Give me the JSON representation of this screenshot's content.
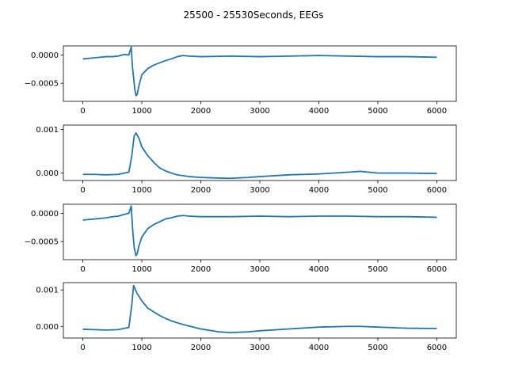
{
  "figure_title": "25500 - 25530Seconds, EEGs",
  "line_color": "#1f77b4",
  "chart_data": [
    {
      "type": "line",
      "title": "",
      "xlabel": "",
      "ylabel": "",
      "xlim": [
        -330,
        6330
      ],
      "ylim": [
        -0.00082,
        0.00016
      ],
      "xticks": [
        0,
        1000,
        2000,
        3000,
        4000,
        5000,
        6000
      ],
      "xtick_labels": [
        "0",
        "1000",
        "2000",
        "3000",
        "4000",
        "5000",
        "6000"
      ],
      "yticks": [
        -0.0005,
        0.0
      ],
      "ytick_labels": [
        "−0.0005",
        "0.0000"
      ],
      "grid": false,
      "series": [
        {
          "x": [
            0,
            100,
            200,
            300,
            400,
            500,
            600,
            700,
            780,
            820,
            840,
            860,
            880,
            900,
            920,
            950,
            1000,
            1100,
            1200,
            1300,
            1400,
            1500,
            1600,
            1700,
            1800,
            2000,
            2500,
            3000,
            3500,
            4000,
            4500,
            5000,
            5500,
            6000
          ],
          "y": [
            -7e-05,
            -6e-05,
            -5e-05,
            -4e-05,
            -3e-05,
            -3e-05,
            -2e-05,
            1e-05,
            0.0,
            0.00014,
            -0.0002,
            -0.0004,
            -0.0006,
            -0.00072,
            -0.0007,
            -0.00055,
            -0.00035,
            -0.00024,
            -0.00018,
            -0.00014,
            -0.0001,
            -7e-05,
            -3e-05,
            -1e-05,
            -2e-05,
            -3e-05,
            -2e-05,
            -3e-05,
            -2e-05,
            -1e-05,
            -2e-05,
            -3e-05,
            -3e-05,
            -4e-05
          ]
        }
      ]
    },
    {
      "type": "line",
      "title": "",
      "xlabel": "",
      "ylabel": "",
      "xlim": [
        -330,
        6330
      ],
      "ylim": [
        -0.00017,
        0.0011
      ],
      "xticks": [
        0,
        1000,
        2000,
        3000,
        4000,
        5000,
        6000
      ],
      "xtick_labels": [
        "0",
        "1000",
        "2000",
        "3000",
        "4000",
        "5000",
        "6000"
      ],
      "yticks": [
        0.0,
        0.001
      ],
      "ytick_labels": [
        "0.000",
        "0.001"
      ],
      "grid": false,
      "series": [
        {
          "x": [
            0,
            200,
            400,
            600,
            780,
            830,
            870,
            900,
            950,
            1000,
            1100,
            1200,
            1300,
            1400,
            1500,
            1600,
            1800,
            2000,
            2200,
            2500,
            2800,
            3000,
            3500,
            4000,
            4500,
            4700,
            5000,
            5500,
            6000
          ],
          "y": [
            -3e-05,
            -3e-05,
            -4e-05,
            -3e-05,
            2e-05,
            0.0004,
            0.00085,
            0.00092,
            0.0008,
            0.0006,
            0.0004,
            0.00025,
            0.00012,
            5e-05,
            0.0,
            -4e-05,
            -8e-05,
            -0.0001,
            -0.00011,
            -0.00012,
            -0.0001,
            -8e-05,
            -4e-05,
            -2e-05,
            2e-05,
            4e-05,
            0.0,
            0.0,
            -1e-05
          ]
        }
      ]
    },
    {
      "type": "line",
      "title": "",
      "xlabel": "",
      "ylabel": "",
      "xlim": [
        -330,
        6330
      ],
      "ylim": [
        -0.00082,
        0.00016
      ],
      "xticks": [
        0,
        1000,
        2000,
        3000,
        4000,
        5000,
        6000
      ],
      "xtick_labels": [
        "0",
        "1000",
        "2000",
        "3000",
        "4000",
        "5000",
        "6000"
      ],
      "yticks": [
        -0.0005,
        0.0
      ],
      "ytick_labels": [
        "−0.0005",
        "0.0000"
      ],
      "grid": false,
      "series": [
        {
          "x": [
            0,
            100,
            200,
            300,
            400,
            500,
            600,
            700,
            780,
            820,
            845,
            870,
            900,
            920,
            950,
            1000,
            1100,
            1200,
            1300,
            1400,
            1500,
            1600,
            1700,
            1800,
            2000,
            2500,
            3000,
            3500,
            4000,
            4500,
            5000,
            5500,
            6000
          ],
          "y": [
            -0.00012,
            -0.00011,
            -0.0001,
            -9e-05,
            -8e-05,
            -6e-05,
            -5e-05,
            -2e-05,
            0.0,
            0.00013,
            -0.0003,
            -0.0006,
            -0.00075,
            -0.00072,
            -0.00058,
            -0.00042,
            -0.00027,
            -0.0002,
            -0.00015,
            -0.0001,
            -8e-05,
            -5e-05,
            -4e-05,
            -5e-05,
            -6e-05,
            -6e-05,
            -5e-05,
            -6e-05,
            -5e-05,
            -5e-05,
            -6e-05,
            -6e-05,
            -7e-05
          ]
        }
      ]
    },
    {
      "type": "line",
      "title": "",
      "xlabel": "",
      "ylabel": "",
      "xlim": [
        -330,
        6330
      ],
      "ylim": [
        -0.00032,
        0.0012
      ],
      "xticks": [
        0,
        1000,
        2000,
        3000,
        4000,
        5000,
        6000
      ],
      "xtick_labels": [
        "0",
        "1000",
        "2000",
        "3000",
        "4000",
        "5000",
        "6000"
      ],
      "yticks": [
        0.0,
        0.001
      ],
      "ytick_labels": [
        "0.000",
        "0.001"
      ],
      "grid": false,
      "series": [
        {
          "x": [
            0,
            200,
            400,
            600,
            780,
            830,
            860,
            880,
            920,
            1000,
            1100,
            1200,
            1300,
            1400,
            1500,
            1700,
            2000,
            2300,
            2500,
            2800,
            3000,
            3500,
            4000,
            4500,
            4700,
            5000,
            5500,
            6000
          ],
          "y": [
            -8e-05,
            -9e-05,
            -0.0001,
            -9e-05,
            -3e-05,
            0.0006,
            0.00112,
            0.00105,
            0.0009,
            0.0007,
            0.0005,
            0.0004,
            0.0003,
            0.00022,
            0.00015,
            5e-05,
            -7e-05,
            -0.00015,
            -0.00017,
            -0.00015,
            -0.00012,
            -7e-05,
            -2e-05,
            0.0,
            0.0,
            -2e-05,
            -5e-05,
            -6e-05
          ]
        }
      ]
    }
  ]
}
